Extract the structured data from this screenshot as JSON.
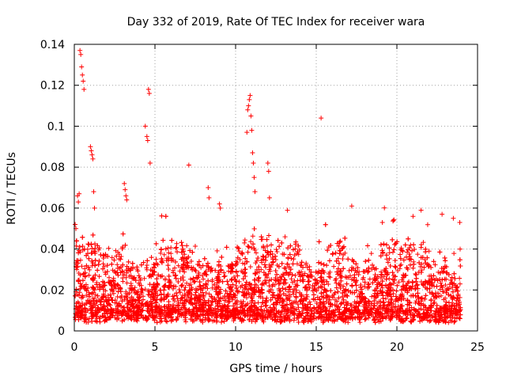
{
  "chart_data": {
    "type": "scatter",
    "title": "Day 332 of 2019, Rate Of TEC Index for receiver wara",
    "xlabel": "GPS time / hours",
    "ylabel": "ROTI / TECUs",
    "xlim": [
      0,
      25
    ],
    "ylim": [
      0,
      0.14
    ],
    "xticks": [
      0,
      5,
      10,
      15,
      20,
      25
    ],
    "xtick_labels": [
      "0",
      "5",
      "10",
      "15",
      "20",
      "25"
    ],
    "yticks": [
      0,
      0.02,
      0.04,
      0.06,
      0.08,
      0.1,
      0.12,
      0.14
    ],
    "ytick_labels": [
      "0",
      "0.02",
      "0.04",
      "0.06",
      "0.08",
      "0.1",
      "0.12",
      "0.14"
    ],
    "grid": true,
    "marker": "+",
    "color": "#ff0000",
    "series": [
      {
        "name": "ROTI",
        "x": [
          0.05,
          0.1,
          0.15,
          0.2,
          0.25,
          0.3,
          0.35,
          0.4,
          0.45,
          0.5,
          0.55,
          0.6,
          1.0,
          1.05,
          1.1,
          1.15,
          1.2,
          1.25,
          3.1,
          3.15,
          3.2,
          3.25,
          4.4,
          4.5,
          4.55,
          4.6,
          4.65,
          4.7,
          7.1,
          8.3,
          8.35,
          9.0,
          9.05,
          10.7,
          10.75,
          10.8,
          10.85,
          10.9,
          10.95,
          11.0,
          11.05,
          11.1,
          11.15,
          11.2,
          12.0,
          12.05,
          12.1,
          15.3,
          17.2,
          19.1,
          21.0,
          21.5,
          22.8,
          23.5,
          23.9
        ],
        "y": [
          0.052,
          0.05,
          0.03,
          0.066,
          0.063,
          0.067,
          0.137,
          0.135,
          0.129,
          0.125,
          0.122,
          0.118,
          0.09,
          0.088,
          0.086,
          0.084,
          0.068,
          0.06,
          0.072,
          0.069,
          0.066,
          0.064,
          0.1,
          0.095,
          0.093,
          0.118,
          0.116,
          0.082,
          0.081,
          0.07,
          0.065,
          0.062,
          0.06,
          0.097,
          0.108,
          0.11,
          0.113,
          0.115,
          0.105,
          0.098,
          0.087,
          0.082,
          0.075,
          0.068,
          0.082,
          0.078,
          0.065,
          0.104,
          0.061,
          0.053,
          0.056,
          0.059,
          0.057,
          0.055,
          0.053
        ]
      }
    ]
  }
}
